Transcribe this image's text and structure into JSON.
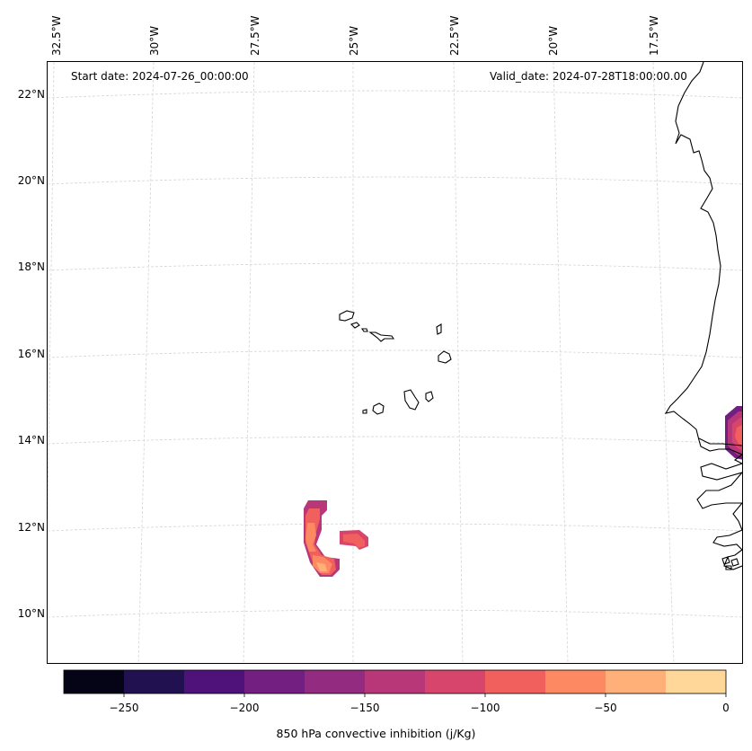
{
  "header": {
    "start_date": "Start date: 2024-07-26_00:00:00",
    "valid_date": "Valid_date: 2024-07-28T18:00:00.00"
  },
  "lon_labels": [
    "32.5°W",
    "30°W",
    "27.5°W",
    "25°W",
    "22.5°W",
    "20°W",
    "17.5°W"
  ],
  "lat_labels": [
    "22°N",
    "20°N",
    "18°N",
    "16°N",
    "14°N",
    "12°N",
    "10°N"
  ],
  "colorbar": {
    "label": "850 hPa convective inhibition (j/Kg)",
    "ticks": [
      "−250",
      "−200",
      "−150",
      "−100",
      "−50",
      "0"
    ],
    "levels": [
      -275,
      -250,
      -225,
      -200,
      -175,
      -150,
      -125,
      -100,
      -75,
      -50,
      -25,
      0
    ],
    "colors": [
      "#050417",
      "#221150",
      "#4f127b",
      "#721f81",
      "#932b80",
      "#b73779",
      "#d8456c",
      "#f1605d",
      "#fc8961",
      "#feb078",
      "#fed799",
      "#fcecad"
    ]
  },
  "layers": {
    "coastline": "coastline-icon",
    "gridlines": "gridline-icon"
  }
}
